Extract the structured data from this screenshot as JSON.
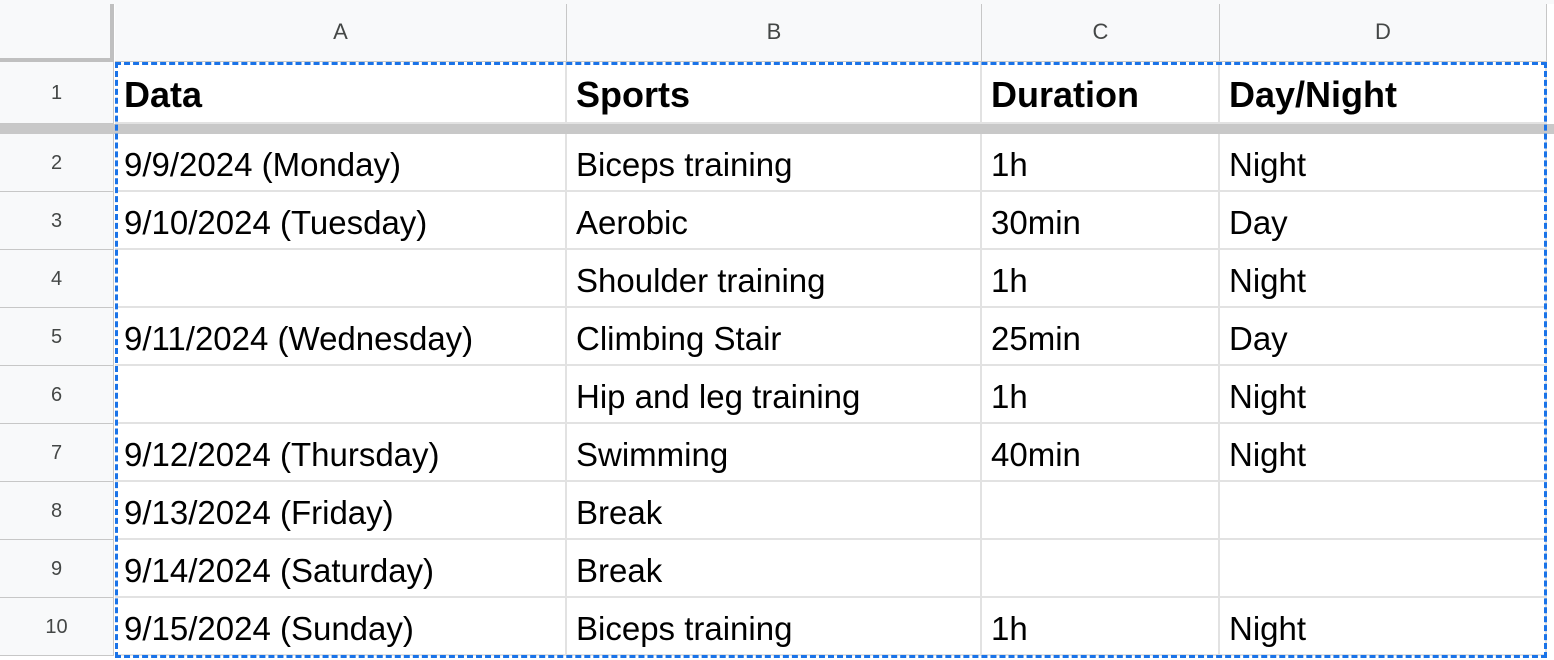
{
  "columns": [
    "A",
    "B",
    "C",
    "D"
  ],
  "row_numbers": [
    "1",
    "2",
    "3",
    "4",
    "5",
    "6",
    "7",
    "8",
    "9",
    "10"
  ],
  "rows": [
    [
      "Data",
      "Sports",
      "Duration",
      "Day/Night"
    ],
    [
      "9/9/2024 (Monday)",
      "Biceps training",
      "1h",
      "Night"
    ],
    [
      "9/10/2024 (Tuesday)",
      "Aerobic",
      "30min",
      "Day"
    ],
    [
      "",
      "Shoulder training",
      "1h",
      "Night"
    ],
    [
      "9/11/2024 (Wednesday)",
      "Climbing Stair",
      "25min",
      "Day"
    ],
    [
      "",
      "Hip and leg training",
      "1h",
      "Night"
    ],
    [
      "9/12/2024 (Thursday)",
      "Swimming",
      "40min",
      "Night"
    ],
    [
      "9/13/2024 (Friday)",
      "Break",
      "",
      ""
    ],
    [
      "9/14/2024 (Saturday)",
      "Break",
      "",
      ""
    ],
    [
      "9/15/2024 (Sunday)",
      "Biceps training",
      "1h",
      "Night"
    ]
  ]
}
